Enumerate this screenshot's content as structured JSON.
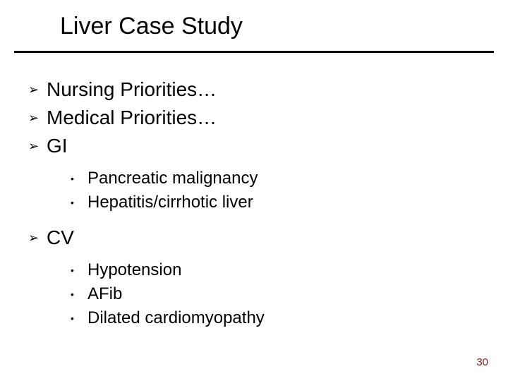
{
  "colors": {
    "background": "#ffffff",
    "text": "#000000",
    "rule": "#000000",
    "page_number": "#8b1a1a"
  },
  "typography": {
    "family": "Arial, Helvetica, sans-serif",
    "title_size_pt": 34,
    "l1_size_pt": 28,
    "l2_size_pt": 24,
    "page_num_size_pt": 15
  },
  "bullets": {
    "l1_glyph": "➢",
    "l2_glyph": "•"
  },
  "slide": {
    "title": "Liver Case Study",
    "page_number": "30",
    "items": {
      "a": {
        "text": "Nursing Priorities…"
      },
      "b": {
        "text": "Medical Priorities…"
      },
      "c": {
        "text": "GI",
        "sub": {
          "a": "Pancreatic malignancy",
          "b": "Hepatitis/cirrhotic liver"
        }
      },
      "d": {
        "text": "CV",
        "sub": {
          "a": "Hypotension",
          "b": "AFib",
          "c": "Dilated cardiomyopathy"
        }
      }
    }
  }
}
